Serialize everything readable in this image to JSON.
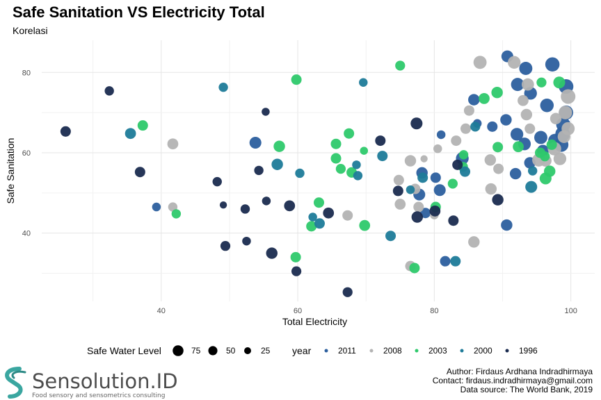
{
  "chart_data": {
    "type": "scatter",
    "title": "Safe Sanitation VS Electricity Total",
    "subtitle": "Korelasi",
    "xlabel": "Total Electricity",
    "ylabel": "Safe Sanitation",
    "xlim": [
      22.5,
      103.5
    ],
    "ylim": [
      23,
      88
    ],
    "xticks": [
      40,
      60,
      80,
      100
    ],
    "yticks": [
      40,
      60,
      80
    ],
    "grid": true,
    "legend_position": "bottom",
    "size_legend": {
      "title": "Safe Water Level",
      "levels": [
        75,
        50,
        25
      ]
    },
    "color_legend": {
      "title": "year",
      "items": [
        "2011",
        "2008",
        "2003",
        "2000",
        "1996"
      ]
    },
    "colors": {
      "2011": "#2c5f9e",
      "2008": "#b3b3b3",
      "2003": "#2ec96c",
      "2000": "#1e7b99",
      "1996": "#1a2b4f"
    },
    "series": [
      {
        "name": "2011",
        "points": [
          [
            90.7,
            84,
            55
          ],
          [
            93.4,
            81,
            70
          ],
          [
            97.3,
            82,
            85
          ],
          [
            92.2,
            77,
            70
          ],
          [
            94.1,
            74.8,
            65
          ],
          [
            96.5,
            71.8,
            75
          ],
          [
            99.3,
            76.5,
            90
          ],
          [
            99.3,
            70,
            85
          ],
          [
            98.9,
            67,
            85
          ],
          [
            98.8,
            64.7,
            90
          ],
          [
            98.6,
            62,
            85
          ],
          [
            97.7,
            63,
            80
          ],
          [
            95.6,
            63.8,
            70
          ],
          [
            95.9,
            60.5,
            55
          ],
          [
            94,
            57.5,
            50
          ],
          [
            92.1,
            64.6,
            65
          ],
          [
            93.2,
            62.2,
            65
          ],
          [
            91.9,
            54.8,
            50
          ],
          [
            90.5,
            68.2,
            50
          ],
          [
            88.5,
            66.5,
            40
          ],
          [
            86.3,
            67.3,
            25
          ],
          [
            85.8,
            73.2,
            50
          ],
          [
            84.1,
            58.6,
            65
          ],
          [
            81,
            64.5,
            25
          ],
          [
            78.2,
            55,
            50
          ],
          [
            80.8,
            50.7,
            55
          ],
          [
            77.8,
            49.6,
            55
          ],
          [
            78.7,
            45,
            40
          ],
          [
            80.2,
            53.8,
            40
          ],
          [
            81.6,
            33,
            40
          ],
          [
            90.6,
            42,
            50
          ],
          [
            53.8,
            62.5,
            55
          ],
          [
            39.3,
            46.5,
            25
          ]
        ]
      },
      {
        "name": "2008",
        "points": [
          [
            91.7,
            82.5,
            65
          ],
          [
            93.7,
            77,
            60
          ],
          [
            93,
            73,
            45
          ],
          [
            93.5,
            69.5,
            50
          ],
          [
            94,
            66,
            40
          ],
          [
            97.8,
            68.5,
            50
          ],
          [
            99.6,
            74,
            90
          ],
          [
            99.2,
            70,
            75
          ],
          [
            99.6,
            66,
            70
          ],
          [
            99,
            64,
            65
          ],
          [
            98.4,
            58.5,
            65
          ],
          [
            95.3,
            58.2,
            70
          ],
          [
            96.3,
            58,
            55
          ],
          [
            97.6,
            61,
            75
          ],
          [
            89.4,
            56,
            40
          ],
          [
            88.2,
            58.2,
            50
          ],
          [
            88.3,
            51,
            50
          ],
          [
            86.7,
            82.5,
            70
          ],
          [
            85.1,
            70.5,
            40
          ],
          [
            84.6,
            66,
            40
          ],
          [
            83.2,
            63,
            40
          ],
          [
            80.5,
            61,
            25
          ],
          [
            78.5,
            58.5,
            15
          ],
          [
            76.5,
            58,
            50
          ],
          [
            77.2,
            51,
            40
          ],
          [
            77.7,
            46.5,
            40
          ],
          [
            80,
            44.5,
            25
          ],
          [
            75,
            47.2,
            45
          ],
          [
            74.8,
            53.2,
            40
          ],
          [
            76.5,
            31.8,
            40
          ],
          [
            85.8,
            37.8,
            50
          ],
          [
            67.3,
            44.4,
            40
          ],
          [
            41.7,
            62.2,
            45
          ],
          [
            41.7,
            46.5,
            30
          ]
        ]
      },
      {
        "name": "2003",
        "points": [
          [
            89.2,
            75,
            50
          ],
          [
            95.7,
            77.5,
            35
          ],
          [
            98.3,
            77.5,
            55
          ],
          [
            87.3,
            73.5,
            45
          ],
          [
            92.3,
            61.5,
            45
          ],
          [
            95.5,
            60,
            40
          ],
          [
            96.2,
            59.1,
            35
          ],
          [
            97.2,
            62,
            40
          ],
          [
            96.9,
            55.4,
            50
          ],
          [
            96.3,
            53.6,
            55
          ],
          [
            89.3,
            61.4,
            40
          ],
          [
            84.3,
            59.5,
            30
          ],
          [
            84.2,
            56.5,
            35
          ],
          [
            82.7,
            52.3,
            35
          ],
          [
            80.2,
            46.5,
            40
          ],
          [
            77.1,
            31.3,
            40
          ],
          [
            75,
            81.7,
            35
          ],
          [
            59.8,
            78.2,
            40
          ],
          [
            57.3,
            61.6,
            50
          ],
          [
            65.6,
            62.2,
            40
          ],
          [
            67.5,
            64.8,
            40
          ],
          [
            69.7,
            60.5,
            20
          ],
          [
            65.6,
            58.6,
            40
          ],
          [
            66.3,
            56,
            35
          ],
          [
            67.9,
            55.1,
            40
          ],
          [
            69.8,
            41.9,
            45
          ],
          [
            63.1,
            47.6,
            40
          ],
          [
            62,
            41.7,
            40
          ],
          [
            59.7,
            34,
            40
          ],
          [
            42.2,
            44.8,
            30
          ],
          [
            37.3,
            66.8,
            40
          ]
        ]
      },
      {
        "name": "2000",
        "points": [
          [
            49.1,
            76.3,
            30
          ],
          [
            69.6,
            77.5,
            25
          ],
          [
            35.5,
            64.8,
            45
          ],
          [
            57,
            57.1,
            50
          ],
          [
            60.3,
            54.9,
            30
          ],
          [
            72.4,
            59.2,
            40
          ],
          [
            68.6,
            57,
            25
          ],
          [
            68.8,
            54.3,
            30
          ],
          [
            63.2,
            42.4,
            40
          ],
          [
            62.2,
            44,
            25
          ],
          [
            73.6,
            39.3,
            40
          ],
          [
            83.1,
            33,
            40
          ],
          [
            84.5,
            55.3,
            40
          ],
          [
            94.4,
            55.5,
            30
          ],
          [
            94.2,
            51.5,
            55
          ],
          [
            76.5,
            50.8,
            25
          ],
          [
            86,
            66.5,
            35
          ],
          [
            78.3,
            53.8,
            40
          ]
        ]
      },
      {
        "name": "1996",
        "points": [
          [
            26,
            65.3,
            40
          ],
          [
            32.4,
            75.4,
            30
          ],
          [
            36.9,
            55.2,
            40
          ],
          [
            55.3,
            70.2,
            20
          ],
          [
            54.3,
            55.6,
            30
          ],
          [
            55.4,
            48,
            25
          ],
          [
            48.2,
            52.8,
            30
          ],
          [
            49.1,
            47,
            15
          ],
          [
            52.3,
            46,
            30
          ],
          [
            52.5,
            38,
            25
          ],
          [
            49.4,
            36.8,
            35
          ],
          [
            56.2,
            35,
            50
          ],
          [
            59.8,
            30.5,
            35
          ],
          [
            58.8,
            46.8,
            45
          ],
          [
            64.5,
            45,
            45
          ],
          [
            67.3,
            25.3,
            35
          ],
          [
            72.1,
            63,
            40
          ],
          [
            74.7,
            50.5,
            40
          ],
          [
            77.4,
            67.3,
            55
          ],
          [
            77.5,
            44,
            50
          ],
          [
            80.1,
            45.5,
            45
          ],
          [
            82.8,
            43.1,
            40
          ],
          [
            83.4,
            57,
            40
          ],
          [
            89.3,
            48.3,
            50
          ]
        ]
      }
    ]
  },
  "caption": {
    "line1": "Author: Firdaus Ardhana Indradhirmaya",
    "line2": "Contact: firdaus.indradhirmaya@gmail.com",
    "line3": "Data source: The World Bank, 2019"
  },
  "logo": {
    "name": "Sensolution.ID",
    "tagline": "Food sensory and sensometrics consulting"
  }
}
